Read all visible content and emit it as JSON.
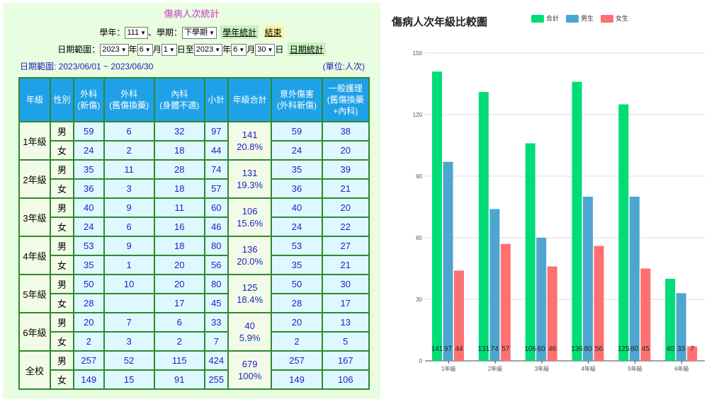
{
  "left": {
    "title": "傷病人次統計",
    "year_label": "學年：",
    "year_value": "111",
    "term_label": "、學期：",
    "term_value": "下學期",
    "year_stats_btn": "學年統計",
    "end_btn": "結束",
    "date_range_label": "日期範圍：",
    "from": {
      "year": "2023",
      "year_suffix": "年",
      "month": "6",
      "month_suffix": "月",
      "day": "1",
      "day_suffix": "日至"
    },
    "to": {
      "year": "2023",
      "year_suffix": "年",
      "month": "6",
      "month_suffix": "月",
      "day": "30",
      "day_suffix": "日"
    },
    "date_stats_btn": "日期統計",
    "range_text": "日期範圍: 2023/06/01 ~ 2023/06/30",
    "unit_text": "(單位:人次)"
  },
  "table": {
    "headers": [
      "年級",
      "性別",
      "外科\n(新傷)",
      "外科\n(舊傷換藥)",
      "內科\n(身體不適)",
      "小計",
      "年級合計",
      "意外傷害\n(外科新傷)",
      "一般護理\n(舊傷換藥\n+內科)"
    ],
    "groups": [
      {
        "grade": "1年級",
        "total": "141",
        "pct": "20.8%",
        "rows": [
          {
            "sex": "男",
            "surg_new": "59",
            "surg_old": "6",
            "internal": "32",
            "subtotal": "97",
            "accident": "59",
            "care": "38"
          },
          {
            "sex": "女",
            "surg_new": "24",
            "surg_old": "2",
            "internal": "18",
            "subtotal": "44",
            "accident": "24",
            "care": "20"
          }
        ]
      },
      {
        "grade": "2年級",
        "total": "131",
        "pct": "19.3%",
        "rows": [
          {
            "sex": "男",
            "surg_new": "35",
            "surg_old": "11",
            "internal": "28",
            "subtotal": "74",
            "accident": "35",
            "care": "39"
          },
          {
            "sex": "女",
            "surg_new": "36",
            "surg_old": "3",
            "internal": "18",
            "subtotal": "57",
            "accident": "36",
            "care": "21"
          }
        ]
      },
      {
        "grade": "3年級",
        "total": "106",
        "pct": "15.6%",
        "rows": [
          {
            "sex": "男",
            "surg_new": "40",
            "surg_old": "9",
            "internal": "11",
            "subtotal": "60",
            "accident": "40",
            "care": "20"
          },
          {
            "sex": "女",
            "surg_new": "24",
            "surg_old": "6",
            "internal": "16",
            "subtotal": "46",
            "accident": "24",
            "care": "22"
          }
        ]
      },
      {
        "grade": "4年級",
        "total": "136",
        "pct": "20.0%",
        "rows": [
          {
            "sex": "男",
            "surg_new": "53",
            "surg_old": "9",
            "internal": "18",
            "subtotal": "80",
            "accident": "53",
            "care": "27"
          },
          {
            "sex": "女",
            "surg_new": "35",
            "surg_old": "1",
            "internal": "20",
            "subtotal": "56",
            "accident": "35",
            "care": "21"
          }
        ]
      },
      {
        "grade": "5年級",
        "total": "125",
        "pct": "18.4%",
        "rows": [
          {
            "sex": "男",
            "surg_new": "50",
            "surg_old": "10",
            "internal": "20",
            "subtotal": "80",
            "accident": "50",
            "care": "30"
          },
          {
            "sex": "女",
            "surg_new": "28",
            "surg_old": "",
            "internal": "17",
            "subtotal": "45",
            "accident": "28",
            "care": "17"
          }
        ]
      },
      {
        "grade": "6年級",
        "total": "40",
        "pct": "5.9%",
        "rows": [
          {
            "sex": "男",
            "surg_new": "20",
            "surg_old": "7",
            "internal": "6",
            "subtotal": "33",
            "accident": "20",
            "care": "13"
          },
          {
            "sex": "女",
            "surg_new": "2",
            "surg_old": "3",
            "internal": "2",
            "subtotal": "7",
            "accident": "2",
            "care": "5"
          }
        ]
      },
      {
        "grade": "全校",
        "total": "679",
        "pct": "100%",
        "rows": [
          {
            "sex": "男",
            "surg_new": "257",
            "surg_old": "52",
            "internal": "115",
            "subtotal": "424",
            "accident": "257",
            "care": "167"
          },
          {
            "sex": "女",
            "surg_new": "149",
            "surg_old": "15",
            "internal": "91",
            "subtotal": "255",
            "accident": "149",
            "care": "106"
          }
        ]
      }
    ]
  },
  "chart_data": {
    "type": "bar",
    "title": "傷病人次年級比較圖",
    "categories": [
      "1年級",
      "2年級",
      "3年級",
      "4年級",
      "5年級",
      "6年級"
    ],
    "series": [
      {
        "name": "合計",
        "color": "#00dd77",
        "values": [
          141,
          131,
          106,
          136,
          125,
          40
        ]
      },
      {
        "name": "男生",
        "color": "#4da6cf",
        "values": [
          97,
          74,
          60,
          80,
          80,
          33
        ]
      },
      {
        "name": "女生",
        "color": "#ff7070",
        "values": [
          44,
          57,
          46,
          56,
          45,
          7
        ]
      }
    ],
    "ylim": [
      0,
      150
    ],
    "yticks": [
      0,
      30,
      60,
      90,
      120,
      150
    ],
    "grid": true,
    "legend": "top",
    "xlabel": "",
    "ylabel": ""
  }
}
